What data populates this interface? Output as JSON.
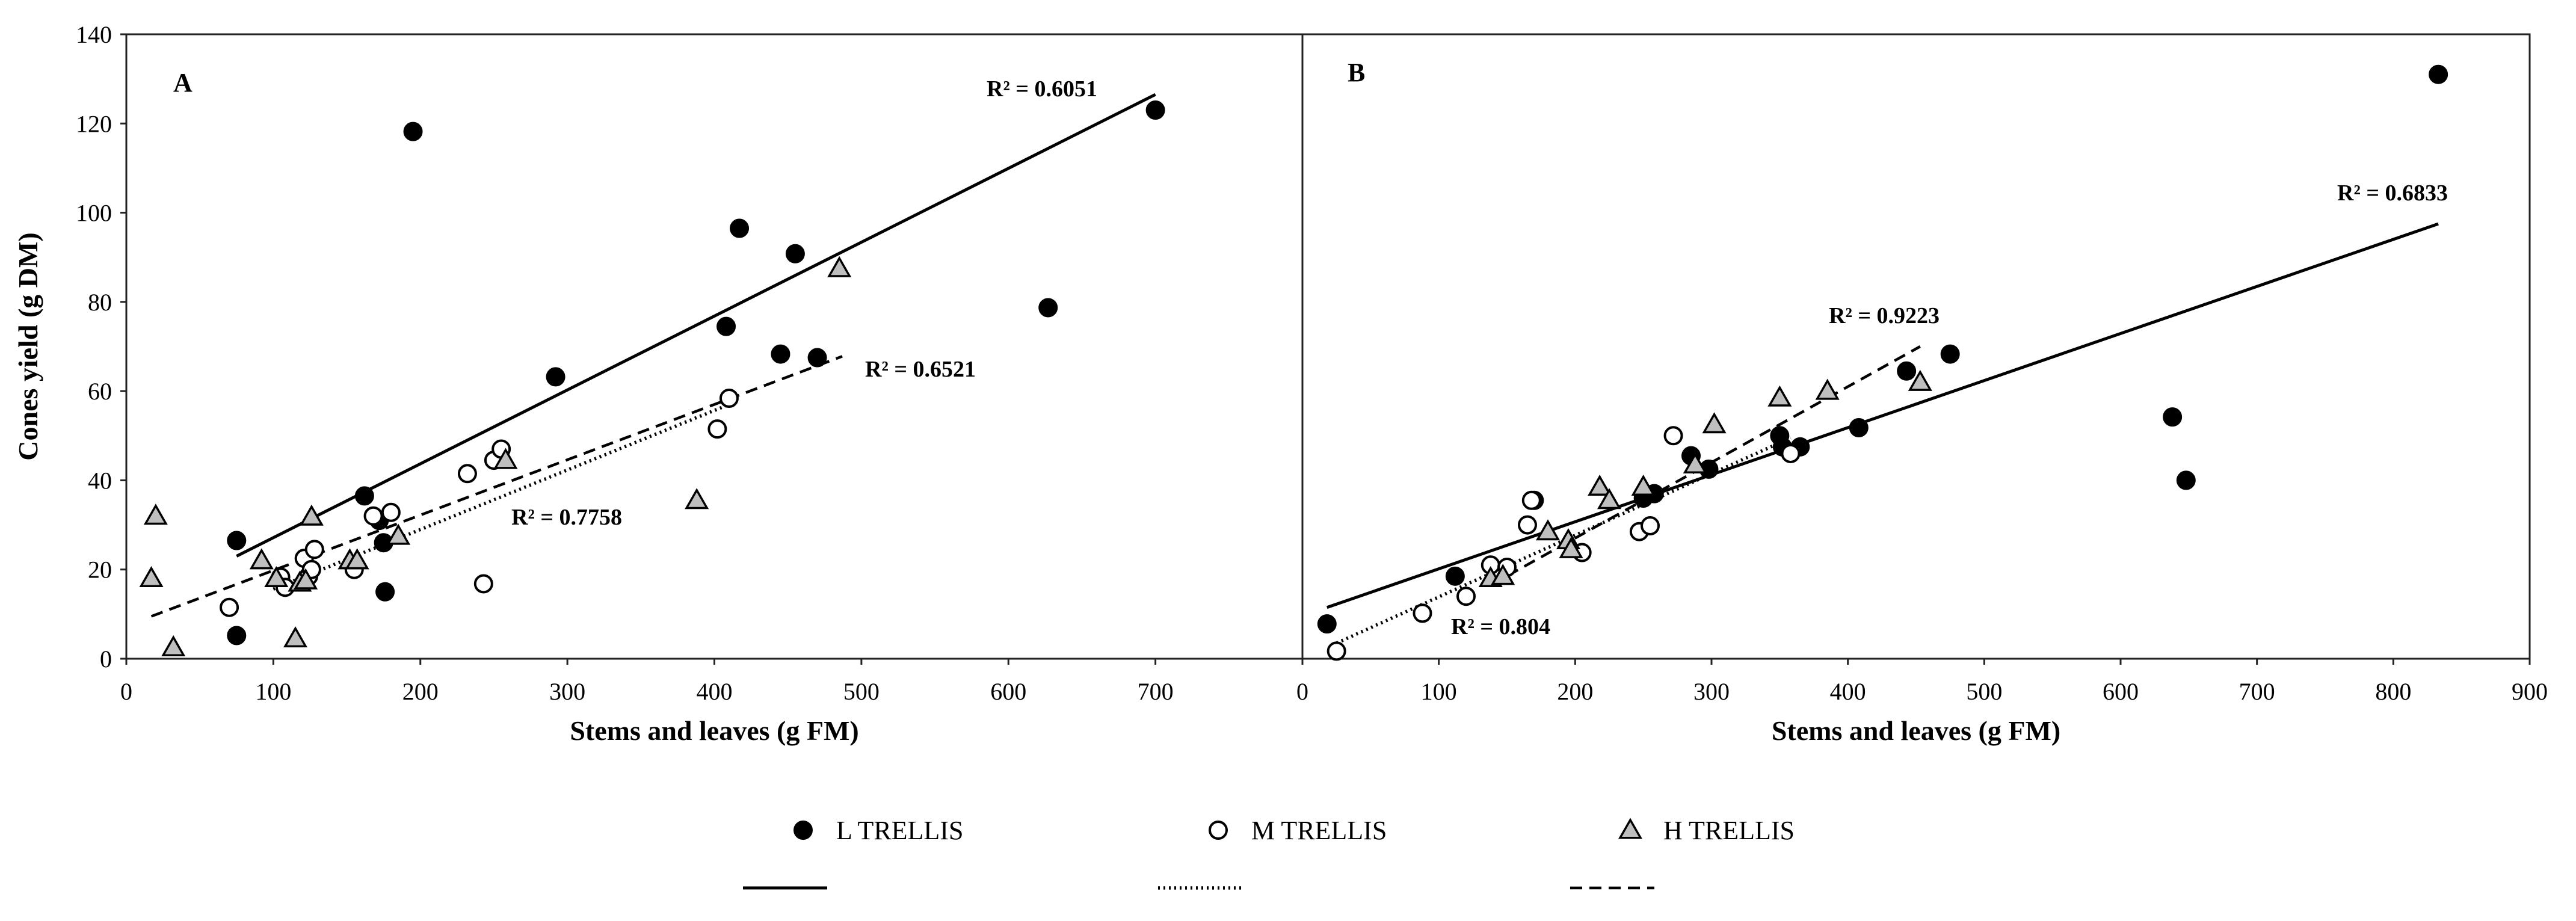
{
  "chart_data": [
    {
      "panel": "A",
      "type": "scatter",
      "xlabel": "Stems and leaves (g FM)",
      "ylabel": "Cones yield (g DM)",
      "xlim": [
        0,
        800
      ],
      "ylim": [
        0,
        140
      ],
      "xticks": [
        0,
        100,
        200,
        300,
        400,
        500,
        600,
        700
      ],
      "yticks": [
        0,
        20,
        40,
        60,
        80,
        100,
        120,
        140
      ],
      "series": [
        {
          "name": "L TRELLIS",
          "marker": "filled-circle",
          "points": [
            [
              75,
              26.5
            ],
            [
              75,
              5.2
            ],
            [
              162,
              36.5
            ],
            [
              172,
              31
            ],
            [
              175,
              26
            ],
            [
              176,
              15
            ],
            [
              195,
              118.2
            ],
            [
              292,
              63.2
            ],
            [
              408,
              74.5
            ],
            [
              417,
              96.5
            ],
            [
              445,
              68.3
            ],
            [
              455,
              90.8
            ],
            [
              470,
              67.5
            ],
            [
              627,
              78.7
            ],
            [
              700,
              123
            ]
          ],
          "trend": {
            "style": "solid",
            "from": [
              75,
              23
            ],
            "to": [
              700,
              126.5
            ],
            "r2": "R² = 0.6051"
          }
        },
        {
          "name": "M TRELLIS",
          "marker": "open-circle",
          "points": [
            [
              70,
              11.5
            ],
            [
              105,
              18.3
            ],
            [
              108,
              16
            ],
            [
              121,
              22.5
            ],
            [
              124,
              18.5
            ],
            [
              126,
              20
            ],
            [
              128,
              24.5
            ],
            [
              155,
              20
            ],
            [
              168,
              32
            ],
            [
              180,
              32.8
            ],
            [
              232,
              41.5
            ],
            [
              243,
              16.8
            ],
            [
              250,
              44.5
            ],
            [
              255,
              47
            ],
            [
              402,
              51.5
            ],
            [
              410,
              58.4
            ]
          ],
          "trend": {
            "style": "dotted",
            "from": [
              100,
              15.6
            ],
            "to": [
              410,
              57
            ],
            "r2": "R² = 0.7758"
          }
        },
        {
          "name": "H TRELLIS",
          "marker": "triangle",
          "points": [
            [
              17,
              18
            ],
            [
              20,
              32
            ],
            [
              32,
              2.5
            ],
            [
              92,
              22
            ],
            [
              102,
              18
            ],
            [
              115,
              4.5
            ],
            [
              118,
              17
            ],
            [
              122,
              17.5
            ],
            [
              126,
              31.8
            ],
            [
              152,
              22
            ],
            [
              157,
              22
            ],
            [
              185,
              27.5
            ],
            [
              258,
              44.5
            ],
            [
              388,
              35.5
            ],
            [
              485,
              87.5
            ]
          ],
          "trend": {
            "style": "dashed",
            "from": [
              17,
              9.5
            ],
            "to": [
              487,
              67.8
            ],
            "r2": "R² = 0.6521"
          }
        }
      ]
    },
    {
      "panel": "B",
      "type": "scatter",
      "xlabel": "Stems and leaves (g FM)",
      "ylabel": "",
      "xlim": [
        0,
        900
      ],
      "ylim": [
        0,
        140
      ],
      "xticks": [
        0,
        100,
        200,
        300,
        400,
        500,
        600,
        700,
        800,
        900
      ],
      "series": [
        {
          "name": "L TRELLIS",
          "marker": "filled-circle",
          "points": [
            [
              18,
              7.8
            ],
            [
              112,
              18.5
            ],
            [
              170,
              35.5
            ],
            [
              250,
              36
            ],
            [
              258,
              37
            ],
            [
              285,
              45.5
            ],
            [
              298,
              42.5
            ],
            [
              350,
              50
            ],
            [
              352,
              47.5
            ],
            [
              365,
              47.5
            ],
            [
              408,
              51.8
            ],
            [
              443,
              64.5
            ],
            [
              475,
              68.3
            ],
            [
              638,
              54.2
            ],
            [
              648,
              40
            ],
            [
              833,
              131
            ]
          ],
          "trend": {
            "style": "solid",
            "from": [
              18,
              11.5
            ],
            "to": [
              833,
              97.5
            ],
            "r2": "R² = 0.6833"
          }
        },
        {
          "name": "M TRELLIS",
          "marker": "open-circle",
          "points": [
            [
              25,
              1.7
            ],
            [
              88,
              10.2
            ],
            [
              120,
              14
            ],
            [
              138,
              21
            ],
            [
              150,
              20.5
            ],
            [
              165,
              30
            ],
            [
              168,
              35.5
            ],
            [
              205,
              23.8
            ],
            [
              247,
              28.5
            ],
            [
              255,
              29.8
            ],
            [
              272,
              50
            ],
            [
              358,
              46
            ]
          ],
          "trend": {
            "style": "dotted",
            "from": [
              25,
              3.5
            ],
            "to": [
              358,
              49.5
            ],
            "r2": "R² = 0.804"
          }
        },
        {
          "name": "H TRELLIS",
          "marker": "triangle",
          "points": [
            [
              138,
              18
            ],
            [
              147,
              18.5
            ],
            [
              180,
              28.5
            ],
            [
              195,
              26.5
            ],
            [
              197,
              24.5
            ],
            [
              218,
              38.5
            ],
            [
              225,
              35.5
            ],
            [
              250,
              38.5
            ],
            [
              288,
              43.5
            ],
            [
              302,
              52.5
            ],
            [
              350,
              58.5
            ],
            [
              385,
              60
            ],
            [
              453,
              62
            ]
          ],
          "trend": {
            "style": "dashed",
            "from": [
              138,
              16.5
            ],
            "to": [
              453,
              70
            ],
            "r2": "R² = 0.9223"
          }
        }
      ]
    }
  ],
  "legend": [
    {
      "label": "L TRELLIS",
      "marker": "filled-circle",
      "line": "solid"
    },
    {
      "label": "M TRELLIS",
      "marker": "open-circle",
      "line": "dotted"
    },
    {
      "label": "H TRELLIS",
      "marker": "triangle",
      "line": "dashed"
    }
  ]
}
